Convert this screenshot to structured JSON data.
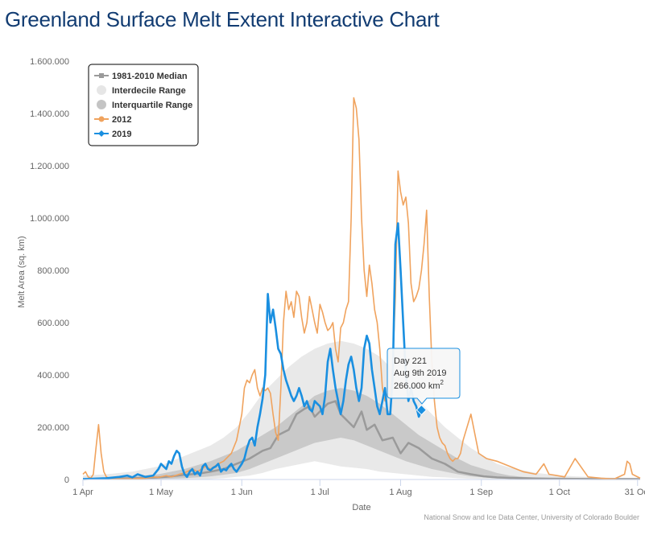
{
  "page": {
    "title": "Greenland Surface Melt Extent Interactive Chart"
  },
  "credit": "National Snow and Ice Data Center, University of Colorado Boulder",
  "tooltip": {
    "line1": "Day 221",
    "line2": "Aug 9th 2019",
    "value_text": "266.000 km",
    "unit_sup": "2",
    "day": 221,
    "value": 266000
  },
  "chart_data": {
    "type": "line",
    "xlabel": "Date",
    "ylabel": "Melt Area (sq. km)",
    "xlim": [
      91,
      305
    ],
    "ylim": [
      0,
      1600000
    ],
    "grid": false,
    "legend_position": "top-left",
    "y_ticks": [
      {
        "value": 0,
        "label": "0"
      },
      {
        "value": 200000,
        "label": "200.000"
      },
      {
        "value": 400000,
        "label": "400.000"
      },
      {
        "value": 600000,
        "label": "600.000"
      },
      {
        "value": 800000,
        "label": "800.000"
      },
      {
        "value": 1000000,
        "label": "1.000.000"
      },
      {
        "value": 1200000,
        "label": "1.200.000"
      },
      {
        "value": 1400000,
        "label": "1.400.000"
      },
      {
        "value": 1600000,
        "label": "1.600.000"
      }
    ],
    "x_ticks": [
      {
        "day": 91,
        "label": "1 Apr"
      },
      {
        "day": 121,
        "label": "1 May"
      },
      {
        "day": 152,
        "label": "1 Jun"
      },
      {
        "day": 182,
        "label": "1 Jul"
      },
      {
        "day": 213,
        "label": "1 Aug"
      },
      {
        "day": 244,
        "label": "1 Sep"
      },
      {
        "day": 274,
        "label": "1 Oct"
      },
      {
        "day": 304,
        "label": "31 Oct"
      }
    ],
    "legend": [
      {
        "key": "median",
        "label": "1981-2010 Median",
        "color": "#9a9a9a",
        "marker": "square"
      },
      {
        "key": "interdecile",
        "label": "Interdecile Range",
        "color": "#e8e8e8",
        "marker": "circle"
      },
      {
        "key": "interquartile",
        "label": "Interquartile Range",
        "color": "#c8c8c8",
        "marker": "circle"
      },
      {
        "key": "y2012",
        "label": "2012",
        "color": "#f0a35e",
        "marker": "circle"
      },
      {
        "key": "y2019",
        "label": "2019",
        "color": "#1a8fe0",
        "marker": "diamond"
      }
    ],
    "interdecile": {
      "x": [
        91,
        100,
        110,
        120,
        125,
        130,
        135,
        140,
        145,
        150,
        155,
        160,
        165,
        170,
        175,
        180,
        185,
        190,
        195,
        200,
        205,
        210,
        215,
        220,
        225,
        230,
        235,
        240,
        245,
        250,
        255,
        260,
        265,
        270,
        275,
        280,
        285,
        290,
        295,
        300,
        305
      ],
      "low": [
        0,
        0,
        0,
        0,
        0,
        0,
        0,
        2000,
        5000,
        10000,
        15000,
        25000,
        40000,
        50000,
        60000,
        70000,
        60000,
        50000,
        45000,
        40000,
        30000,
        25000,
        20000,
        15000,
        10000,
        8000,
        5000,
        3000,
        2000,
        0,
        0,
        0,
        0,
        0,
        0,
        0,
        0,
        0,
        0,
        0,
        0
      ],
      "high": [
        15000,
        20000,
        30000,
        50000,
        70000,
        90000,
        110000,
        130000,
        160000,
        200000,
        260000,
        330000,
        380000,
        430000,
        470000,
        500000,
        520000,
        530000,
        520000,
        500000,
        470000,
        420000,
        360000,
        300000,
        250000,
        200000,
        160000,
        120000,
        90000,
        60000,
        45000,
        35000,
        25000,
        20000,
        15000,
        12000,
        10000,
        8000,
        6000,
        5000,
        4000
      ]
    },
    "interquartile": {
      "x": [
        91,
        100,
        110,
        120,
        125,
        130,
        135,
        140,
        145,
        150,
        155,
        160,
        165,
        170,
        175,
        180,
        185,
        190,
        195,
        200,
        205,
        210,
        215,
        220,
        225,
        230,
        235,
        240,
        245,
        250,
        255,
        260,
        265,
        270,
        275,
        280,
        285,
        290,
        295,
        300,
        305
      ],
      "low": [
        0,
        0,
        0,
        2000,
        3000,
        5000,
        8000,
        12000,
        18000,
        25000,
        40000,
        60000,
        80000,
        100000,
        120000,
        140000,
        150000,
        160000,
        150000,
        130000,
        110000,
        90000,
        70000,
        55000,
        40000,
        30000,
        20000,
        12000,
        8000,
        4000,
        2000,
        1000,
        0,
        0,
        0,
        0,
        0,
        0,
        0,
        0,
        0
      ],
      "high": [
        5000,
        8000,
        12000,
        20000,
        30000,
        40000,
        55000,
        70000,
        90000,
        110000,
        140000,
        170000,
        200000,
        240000,
        280000,
        320000,
        340000,
        350000,
        340000,
        320000,
        290000,
        250000,
        210000,
        170000,
        140000,
        110000,
        80000,
        55000,
        40000,
        25000,
        15000,
        10000,
        7000,
        5000,
        4000,
        3000,
        2500,
        2000,
        1500,
        1000,
        1000
      ]
    },
    "series": [
      {
        "key": "median",
        "color": "#9a9a9a",
        "x": [
          91,
          100,
          110,
          115,
          120,
          125,
          130,
          135,
          140,
          145,
          150,
          155,
          160,
          163,
          166,
          170,
          173,
          176,
          178,
          180,
          182,
          185,
          188,
          190,
          193,
          195,
          198,
          200,
          203,
          206,
          210,
          213,
          216,
          220,
          225,
          230,
          235,
          240,
          245,
          250,
          255,
          260,
          265,
          270,
          280,
          290,
          305
        ],
        "y": [
          2000,
          3000,
          5000,
          6000,
          8000,
          12000,
          18000,
          22000,
          30000,
          40000,
          60000,
          80000,
          110000,
          120000,
          170000,
          190000,
          250000,
          270000,
          280000,
          240000,
          260000,
          290000,
          300000,
          250000,
          220000,
          200000,
          260000,
          190000,
          210000,
          150000,
          160000,
          100000,
          140000,
          120000,
          80000,
          60000,
          30000,
          20000,
          12000,
          8000,
          6000,
          5000,
          4000,
          3000,
          2500,
          2000,
          2000
        ]
      },
      {
        "key": "y2012",
        "name": "2012",
        "color": "#f0a35e",
        "x": [
          91,
          92,
          93,
          94,
          95,
          96,
          97,
          98,
          99,
          100,
          101,
          102,
          103,
          104,
          105,
          110,
          115,
          118,
          120,
          123,
          125,
          128,
          130,
          133,
          135,
          138,
          140,
          143,
          145,
          148,
          150,
          152,
          153,
          154,
          155,
          156,
          157,
          158,
          159,
          160,
          161,
          162,
          163,
          164,
          165,
          166,
          167,
          168,
          169,
          170,
          171,
          172,
          173,
          174,
          175,
          176,
          177,
          178,
          179,
          180,
          181,
          182,
          183,
          184,
          185,
          186,
          187,
          188,
          189,
          190,
          191,
          192,
          193,
          194,
          195,
          196,
          197,
          198,
          199,
          200,
          201,
          202,
          203,
          204,
          205,
          206,
          207,
          208,
          209,
          210,
          211,
          212,
          213,
          214,
          215,
          216,
          217,
          218,
          219,
          220,
          221,
          222,
          223,
          224,
          225,
          226,
          227,
          228,
          229,
          230,
          231,
          232,
          233,
          234,
          235,
          236,
          237,
          240,
          243,
          246,
          250,
          255,
          260,
          265,
          268,
          270,
          273,
          276,
          280,
          285,
          290,
          295,
          299,
          300,
          301,
          302,
          305
        ],
        "y": [
          20000,
          30000,
          10000,
          5000,
          20000,
          120000,
          210000,
          100000,
          30000,
          10000,
          5000,
          3000,
          2000,
          3000,
          2000,
          3000,
          5000,
          10000,
          8000,
          15000,
          10000,
          20000,
          25000,
          40000,
          30000,
          50000,
          40000,
          60000,
          70000,
          100000,
          150000,
          250000,
          350000,
          380000,
          370000,
          400000,
          420000,
          350000,
          320000,
          350000,
          340000,
          350000,
          330000,
          250000,
          180000,
          150000,
          350000,
          600000,
          720000,
          650000,
          680000,
          620000,
          720000,
          700000,
          620000,
          560000,
          600000,
          700000,
          650000,
          600000,
          560000,
          670000,
          640000,
          600000,
          570000,
          580000,
          600000,
          500000,
          450000,
          580000,
          600000,
          650000,
          680000,
          1000000,
          1460000,
          1420000,
          1300000,
          1000000,
          800000,
          700000,
          820000,
          750000,
          650000,
          600000,
          500000,
          350000,
          300000,
          330000,
          320000,
          450000,
          700000,
          1180000,
          1100000,
          1050000,
          1080000,
          980000,
          750000,
          680000,
          700000,
          730000,
          800000,
          900000,
          1030000,
          700000,
          450000,
          300000,
          200000,
          160000,
          140000,
          130000,
          100000,
          80000,
          70000,
          80000,
          80000,
          100000,
          150000,
          250000,
          100000,
          80000,
          70000,
          50000,
          30000,
          20000,
          60000,
          20000,
          15000,
          10000,
          80000,
          10000,
          5000,
          2000,
          20000,
          70000,
          60000,
          20000,
          5000
        ]
      },
      {
        "key": "y2019",
        "name": "2019",
        "color": "#1a8fe0",
        "x": [
          91,
          95,
          100,
          105,
          108,
          110,
          112,
          115,
          118,
          120,
          121,
          122,
          123,
          124,
          125,
          126,
          127,
          128,
          129,
          130,
          131,
          132,
          133,
          134,
          135,
          136,
          137,
          138,
          139,
          140,
          141,
          142,
          143,
          144,
          145,
          146,
          147,
          148,
          149,
          150,
          151,
          152,
          153,
          154,
          155,
          156,
          157,
          158,
          159,
          160,
          161,
          162,
          163,
          164,
          165,
          166,
          167,
          168,
          169,
          170,
          171,
          172,
          173,
          174,
          175,
          176,
          177,
          178,
          179,
          180,
          181,
          182,
          183,
          184,
          185,
          186,
          187,
          188,
          189,
          190,
          191,
          192,
          193,
          194,
          195,
          196,
          197,
          198,
          199,
          200,
          201,
          202,
          203,
          204,
          205,
          206,
          207,
          208,
          209,
          210,
          211,
          212,
          213,
          214,
          215,
          216,
          217,
          218,
          219,
          220,
          221
        ],
        "y": [
          2000,
          3000,
          5000,
          10000,
          15000,
          8000,
          20000,
          10000,
          15000,
          40000,
          60000,
          50000,
          40000,
          70000,
          60000,
          90000,
          110000,
          100000,
          50000,
          20000,
          10000,
          30000,
          40000,
          20000,
          30000,
          15000,
          50000,
          60000,
          40000,
          35000,
          45000,
          50000,
          60000,
          30000,
          40000,
          35000,
          50000,
          60000,
          40000,
          30000,
          45000,
          60000,
          80000,
          120000,
          150000,
          160000,
          130000,
          200000,
          250000,
          310000,
          400000,
          710000,
          600000,
          650000,
          580000,
          500000,
          480000,
          420000,
          380000,
          350000,
          320000,
          300000,
          320000,
          350000,
          320000,
          280000,
          300000,
          270000,
          260000,
          300000,
          290000,
          280000,
          250000,
          320000,
          450000,
          500000,
          420000,
          350000,
          300000,
          250000,
          300000,
          380000,
          440000,
          470000,
          420000,
          350000,
          300000,
          350000,
          500000,
          550000,
          520000,
          420000,
          350000,
          280000,
          250000,
          300000,
          350000,
          250000,
          250000,
          400000,
          900000,
          980000,
          800000,
          600000,
          400000,
          300000,
          350000,
          300000,
          280000,
          240000,
          266000
        ]
      }
    ]
  }
}
